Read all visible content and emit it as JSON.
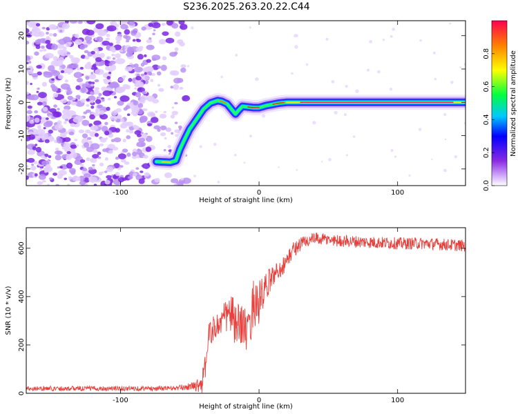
{
  "title": "S236.2025.263.20.22.C44",
  "chart_data": [
    {
      "type": "heatmap",
      "title": "S236.2025.263.20.22.C44",
      "xlabel": "Height of straight line (km)",
      "ylabel": "Frequency (Hz)",
      "xlim": [
        -168,
        149
      ],
      "ylim": [
        -25,
        24.5
      ],
      "xticks": [
        -100,
        0,
        100
      ],
      "yticks": [
        -20,
        -10,
        0,
        10,
        20
      ],
      "xtick_labels": [
        "-100",
        "0",
        "100"
      ],
      "ytick_labels": [
        "-20",
        "-10",
        "0",
        "10",
        "20"
      ],
      "noise_region_x": [
        -168,
        -52
      ],
      "ridge": {
        "x": [
          -74,
          -64,
          -60,
          -57,
          -53,
          -50,
          -45,
          -40,
          -35,
          -30,
          -27,
          -23,
          -20,
          -17,
          -15,
          -12,
          -8,
          -4,
          0,
          5,
          10,
          15,
          20,
          40,
          60,
          80,
          100,
          120,
          149
        ],
        "y": [
          -17.8,
          -18,
          -17.5,
          -14,
          -10.5,
          -8,
          -5,
          -2,
          -0.2,
          0.5,
          0.3,
          -0.5,
          -2,
          -3.5,
          -2.5,
          -1.2,
          -1.4,
          -1.6,
          -1.6,
          -1,
          -0.6,
          -0.2,
          0,
          0,
          0,
          0,
          0,
          0,
          0
        ]
      },
      "colorbar": {
        "label": "Normalized spectral amplitude",
        "range": [
          0,
          1
        ],
        "ticks": [
          0,
          0.2,
          0.4,
          0.6,
          0.8
        ],
        "tick_labels": [
          "0.0",
          "0.2",
          "0.4",
          "0.6",
          "0.8"
        ]
      }
    },
    {
      "type": "line",
      "xlabel": "Height of straight line (km)",
      "ylabel": "SNR (10 * v/v)",
      "xlim": [
        -168,
        149
      ],
      "ylim": [
        0,
        685
      ],
      "xticks": [
        -100,
        0,
        100
      ],
      "yticks": [
        0,
        200,
        400,
        600
      ],
      "xtick_labels": [
        "-100",
        "0",
        "100"
      ],
      "ytick_labels": [
        "0",
        "200",
        "400",
        "600"
      ],
      "series": [
        {
          "name": "SNR",
          "color": "#e8403c",
          "x": [
            -168,
            -150,
            -120,
            -100,
            -80,
            -60,
            -48,
            -44,
            -40,
            -36,
            -32,
            -28,
            -24,
            -20,
            -16,
            -12,
            -8,
            -4,
            0,
            4,
            8,
            12,
            16,
            20,
            24,
            28,
            32,
            40,
            60,
            80,
            100,
            120,
            149
          ],
          "y": [
            20,
            20,
            20,
            20,
            20,
            21,
            30,
            35,
            55,
            250,
            270,
            290,
            320,
            330,
            260,
            300,
            230,
            380,
            370,
            420,
            470,
            500,
            520,
            545,
            590,
            610,
            625,
            640,
            630,
            625,
            620,
            620,
            610
          ],
          "noise_amp": [
            10,
            10,
            10,
            10,
            10,
            10,
            15,
            30,
            60,
            50,
            55,
            60,
            70,
            90,
            100,
            90,
            90,
            100,
            100,
            70,
            50,
            40,
            40,
            35,
            35,
            30,
            30,
            25,
            25,
            25,
            25,
            25,
            25
          ]
        }
      ]
    }
  ]
}
